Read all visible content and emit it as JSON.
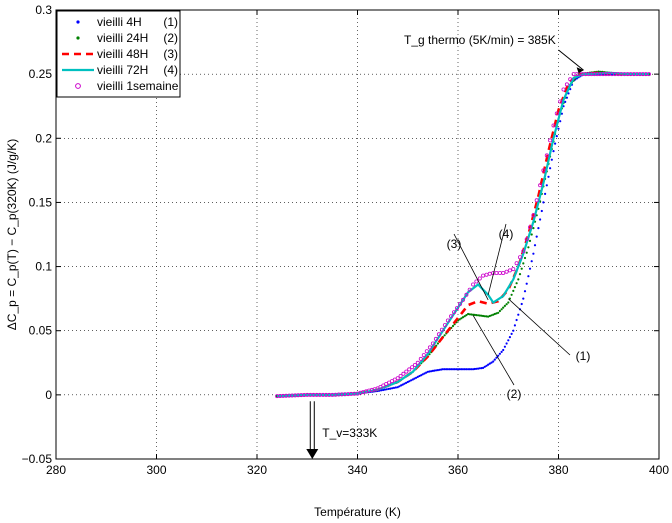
{
  "chart_data": {
    "type": "line",
    "title": "",
    "xlabel": "Température (K)",
    "ylabel": "ΔC_p = C_p(T) − C_p(320K) (J/g/K)",
    "xlim": [
      280,
      400
    ],
    "ylim": [
      -0.05,
      0.3
    ],
    "x_ticks": [
      "280",
      "300",
      "320",
      "340",
      "360",
      "380",
      "400"
    ],
    "y_ticks": [
      "−0.05",
      "0",
      "0.05",
      "0.1",
      "0.15",
      "0.2",
      "0.25",
      "0.3"
    ],
    "grid": true,
    "legend_position": "top-left",
    "series": [
      {
        "name": "vieilli 4H",
        "tag": "(1)",
        "color": "#0000ff",
        "style": "dots",
        "points": [
          [
            324,
            -0.001
          ],
          [
            330,
            0
          ],
          [
            335,
            0
          ],
          [
            340,
            0.001
          ],
          [
            344,
            0.003
          ],
          [
            348,
            0.006
          ],
          [
            351,
            0.012
          ],
          [
            354,
            0.018
          ],
          [
            357,
            0.02
          ],
          [
            360,
            0.02
          ],
          [
            363,
            0.02
          ],
          [
            365,
            0.021
          ],
          [
            367,
            0.026
          ],
          [
            369,
            0.035
          ],
          [
            371,
            0.05
          ],
          [
            373,
            0.075
          ],
          [
            375,
            0.11
          ],
          [
            377,
            0.15
          ],
          [
            379,
            0.19
          ],
          [
            381,
            0.225
          ],
          [
            383,
            0.245
          ],
          [
            385,
            0.25
          ],
          [
            390,
            0.25
          ],
          [
            395,
            0.25
          ],
          [
            398,
            0.25
          ]
        ]
      },
      {
        "name": "vieilli 24H",
        "tag": "(2)",
        "color": "#008000",
        "style": "dots",
        "points": [
          [
            324,
            -0.001
          ],
          [
            330,
            0
          ],
          [
            335,
            0
          ],
          [
            340,
            0.001
          ],
          [
            344,
            0.004
          ],
          [
            348,
            0.01
          ],
          [
            351,
            0.018
          ],
          [
            354,
            0.03
          ],
          [
            357,
            0.045
          ],
          [
            360,
            0.058
          ],
          [
            362,
            0.063
          ],
          [
            364,
            0.062
          ],
          [
            366,
            0.061
          ],
          [
            368,
            0.064
          ],
          [
            370,
            0.072
          ],
          [
            372,
            0.09
          ],
          [
            374,
            0.115
          ],
          [
            376,
            0.145
          ],
          [
            378,
            0.18
          ],
          [
            380,
            0.215
          ],
          [
            382,
            0.24
          ],
          [
            384,
            0.25
          ],
          [
            388,
            0.252
          ],
          [
            393,
            0.25
          ],
          [
            398,
            0.25
          ]
        ]
      },
      {
        "name": "vieilli 48H",
        "tag": "(3)",
        "color": "#ff0000",
        "style": "dashed",
        "points": [
          [
            324,
            -0.001
          ],
          [
            330,
            0
          ],
          [
            335,
            0
          ],
          [
            340,
            0.001
          ],
          [
            344,
            0.004
          ],
          [
            348,
            0.01
          ],
          [
            351,
            0.018
          ],
          [
            354,
            0.03
          ],
          [
            357,
            0.045
          ],
          [
            360,
            0.06
          ],
          [
            362,
            0.07
          ],
          [
            364,
            0.073
          ],
          [
            366,
            0.071
          ],
          [
            368,
            0.073
          ],
          [
            370,
            0.082
          ],
          [
            372,
            0.1
          ],
          [
            374,
            0.125
          ],
          [
            376,
            0.155
          ],
          [
            378,
            0.19
          ],
          [
            380,
            0.222
          ],
          [
            382,
            0.243
          ],
          [
            384,
            0.25
          ],
          [
            388,
            0.251
          ],
          [
            393,
            0.25
          ],
          [
            398,
            0.25
          ]
        ]
      },
      {
        "name": "vieilli 72H",
        "tag": "(4)",
        "color": "#00c0c0",
        "style": "solid",
        "points": [
          [
            324,
            -0.001
          ],
          [
            330,
            0
          ],
          [
            335,
            0
          ],
          [
            340,
            0.001
          ],
          [
            344,
            0.004
          ],
          [
            348,
            0.01
          ],
          [
            351,
            0.018
          ],
          [
            354,
            0.032
          ],
          [
            357,
            0.05
          ],
          [
            360,
            0.068
          ],
          [
            362,
            0.08
          ],
          [
            364,
            0.086
          ],
          [
            366,
            0.078
          ],
          [
            367,
            0.072
          ],
          [
            369,
            0.077
          ],
          [
            371,
            0.09
          ],
          [
            373,
            0.11
          ],
          [
            375,
            0.135
          ],
          [
            377,
            0.165
          ],
          [
            379,
            0.2
          ],
          [
            381,
            0.23
          ],
          [
            383,
            0.247
          ],
          [
            385,
            0.25
          ],
          [
            390,
            0.251
          ],
          [
            395,
            0.25
          ],
          [
            398,
            0.25
          ]
        ]
      },
      {
        "name": "vieilli 1semaine",
        "tag": "",
        "color": "#cc00cc",
        "style": "circles",
        "points": [
          [
            324,
            -0.001
          ],
          [
            330,
            0
          ],
          [
            335,
            0
          ],
          [
            340,
            0.001
          ],
          [
            344,
            0.005
          ],
          [
            348,
            0.013
          ],
          [
            352,
            0.025
          ],
          [
            355,
            0.04
          ],
          [
            358,
            0.058
          ],
          [
            361,
            0.074
          ],
          [
            363,
            0.086
          ],
          [
            365,
            0.093
          ],
          [
            367,
            0.095
          ],
          [
            369,
            0.095
          ],
          [
            371,
            0.098
          ],
          [
            373,
            0.112
          ],
          [
            375,
            0.14
          ],
          [
            377,
            0.175
          ],
          [
            379,
            0.21
          ],
          [
            381,
            0.238
          ],
          [
            383,
            0.25
          ],
          [
            386,
            0.25
          ],
          [
            390,
            0.25
          ],
          [
            395,
            0.25
          ],
          [
            398,
            0.25
          ]
        ]
      }
    ],
    "annotations": {
      "tg": "T_g thermo (5K/min) = 385K",
      "tv": "T_v=333K",
      "labels": [
        "(1)",
        "(2)",
        "(3)",
        "(4)"
      ]
    }
  }
}
